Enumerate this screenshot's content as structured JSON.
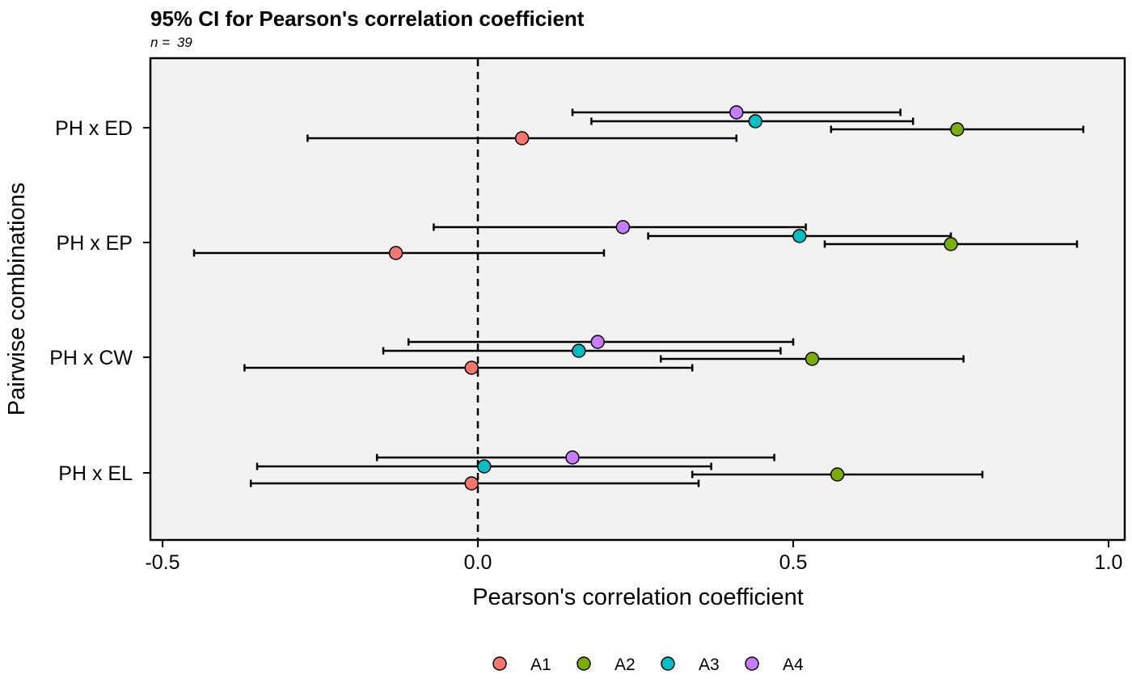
{
  "chart_data": {
    "type": "scatter",
    "title": "95% CI for Pearson's correlation coefficient",
    "subtitle_prefix": "n = ",
    "subtitle_value": "39",
    "xlabel": "Pearson's correlation coefficient",
    "ylabel": "Pairwise combinations",
    "xlim": [
      -0.52,
      1.03
    ],
    "xticks": [
      -0.5,
      0.0,
      0.5,
      1.0
    ],
    "xtick_labels": [
      "-0.5",
      "0.0",
      "0.5",
      "1.0"
    ],
    "reference_line": 0.0,
    "categories": [
      "PH x ED",
      "PH x EP",
      "PH x CW",
      "PH x EL"
    ],
    "grid": false,
    "legend_position": "bottom",
    "series": [
      {
        "name": "A1",
        "color": "#F8766D",
        "points": [
          {
            "category": "PH x ED",
            "r": 0.07,
            "lower": -0.27,
            "upper": 0.41
          },
          {
            "category": "PH x EP",
            "r": -0.13,
            "lower": -0.45,
            "upper": 0.2
          },
          {
            "category": "PH x CW",
            "r": -0.01,
            "lower": -0.37,
            "upper": 0.34
          },
          {
            "category": "PH x EL",
            "r": -0.01,
            "lower": -0.36,
            "upper": 0.35
          }
        ]
      },
      {
        "name": "A2",
        "color": "#7CAE00",
        "points": [
          {
            "category": "PH x ED",
            "r": 0.76,
            "lower": 0.56,
            "upper": 0.96
          },
          {
            "category": "PH x EP",
            "r": 0.75,
            "lower": 0.55,
            "upper": 0.95
          },
          {
            "category": "PH x CW",
            "r": 0.53,
            "lower": 0.29,
            "upper": 0.77
          },
          {
            "category": "PH x EL",
            "r": 0.57,
            "lower": 0.34,
            "upper": 0.8
          }
        ]
      },
      {
        "name": "A3",
        "color": "#00BFC4",
        "points": [
          {
            "category": "PH x ED",
            "r": 0.44,
            "lower": 0.18,
            "upper": 0.69
          },
          {
            "category": "PH x EP",
            "r": 0.51,
            "lower": 0.27,
            "upper": 0.75
          },
          {
            "category": "PH x CW",
            "r": 0.16,
            "lower": -0.15,
            "upper": 0.48
          },
          {
            "category": "PH x EL",
            "r": 0.01,
            "lower": -0.35,
            "upper": 0.37
          }
        ]
      },
      {
        "name": "A4",
        "color": "#C77CFF",
        "points": [
          {
            "category": "PH x ED",
            "r": 0.41,
            "lower": 0.15,
            "upper": 0.67
          },
          {
            "category": "PH x EP",
            "r": 0.23,
            "lower": -0.07,
            "upper": 0.52
          },
          {
            "category": "PH x CW",
            "r": 0.19,
            "lower": -0.11,
            "upper": 0.5
          },
          {
            "category": "PH x EL",
            "r": 0.15,
            "lower": -0.16,
            "upper": 0.47
          }
        ]
      }
    ],
    "colors": {
      "panel_background": "#F2F2F2",
      "point_outline": "#000000"
    }
  }
}
